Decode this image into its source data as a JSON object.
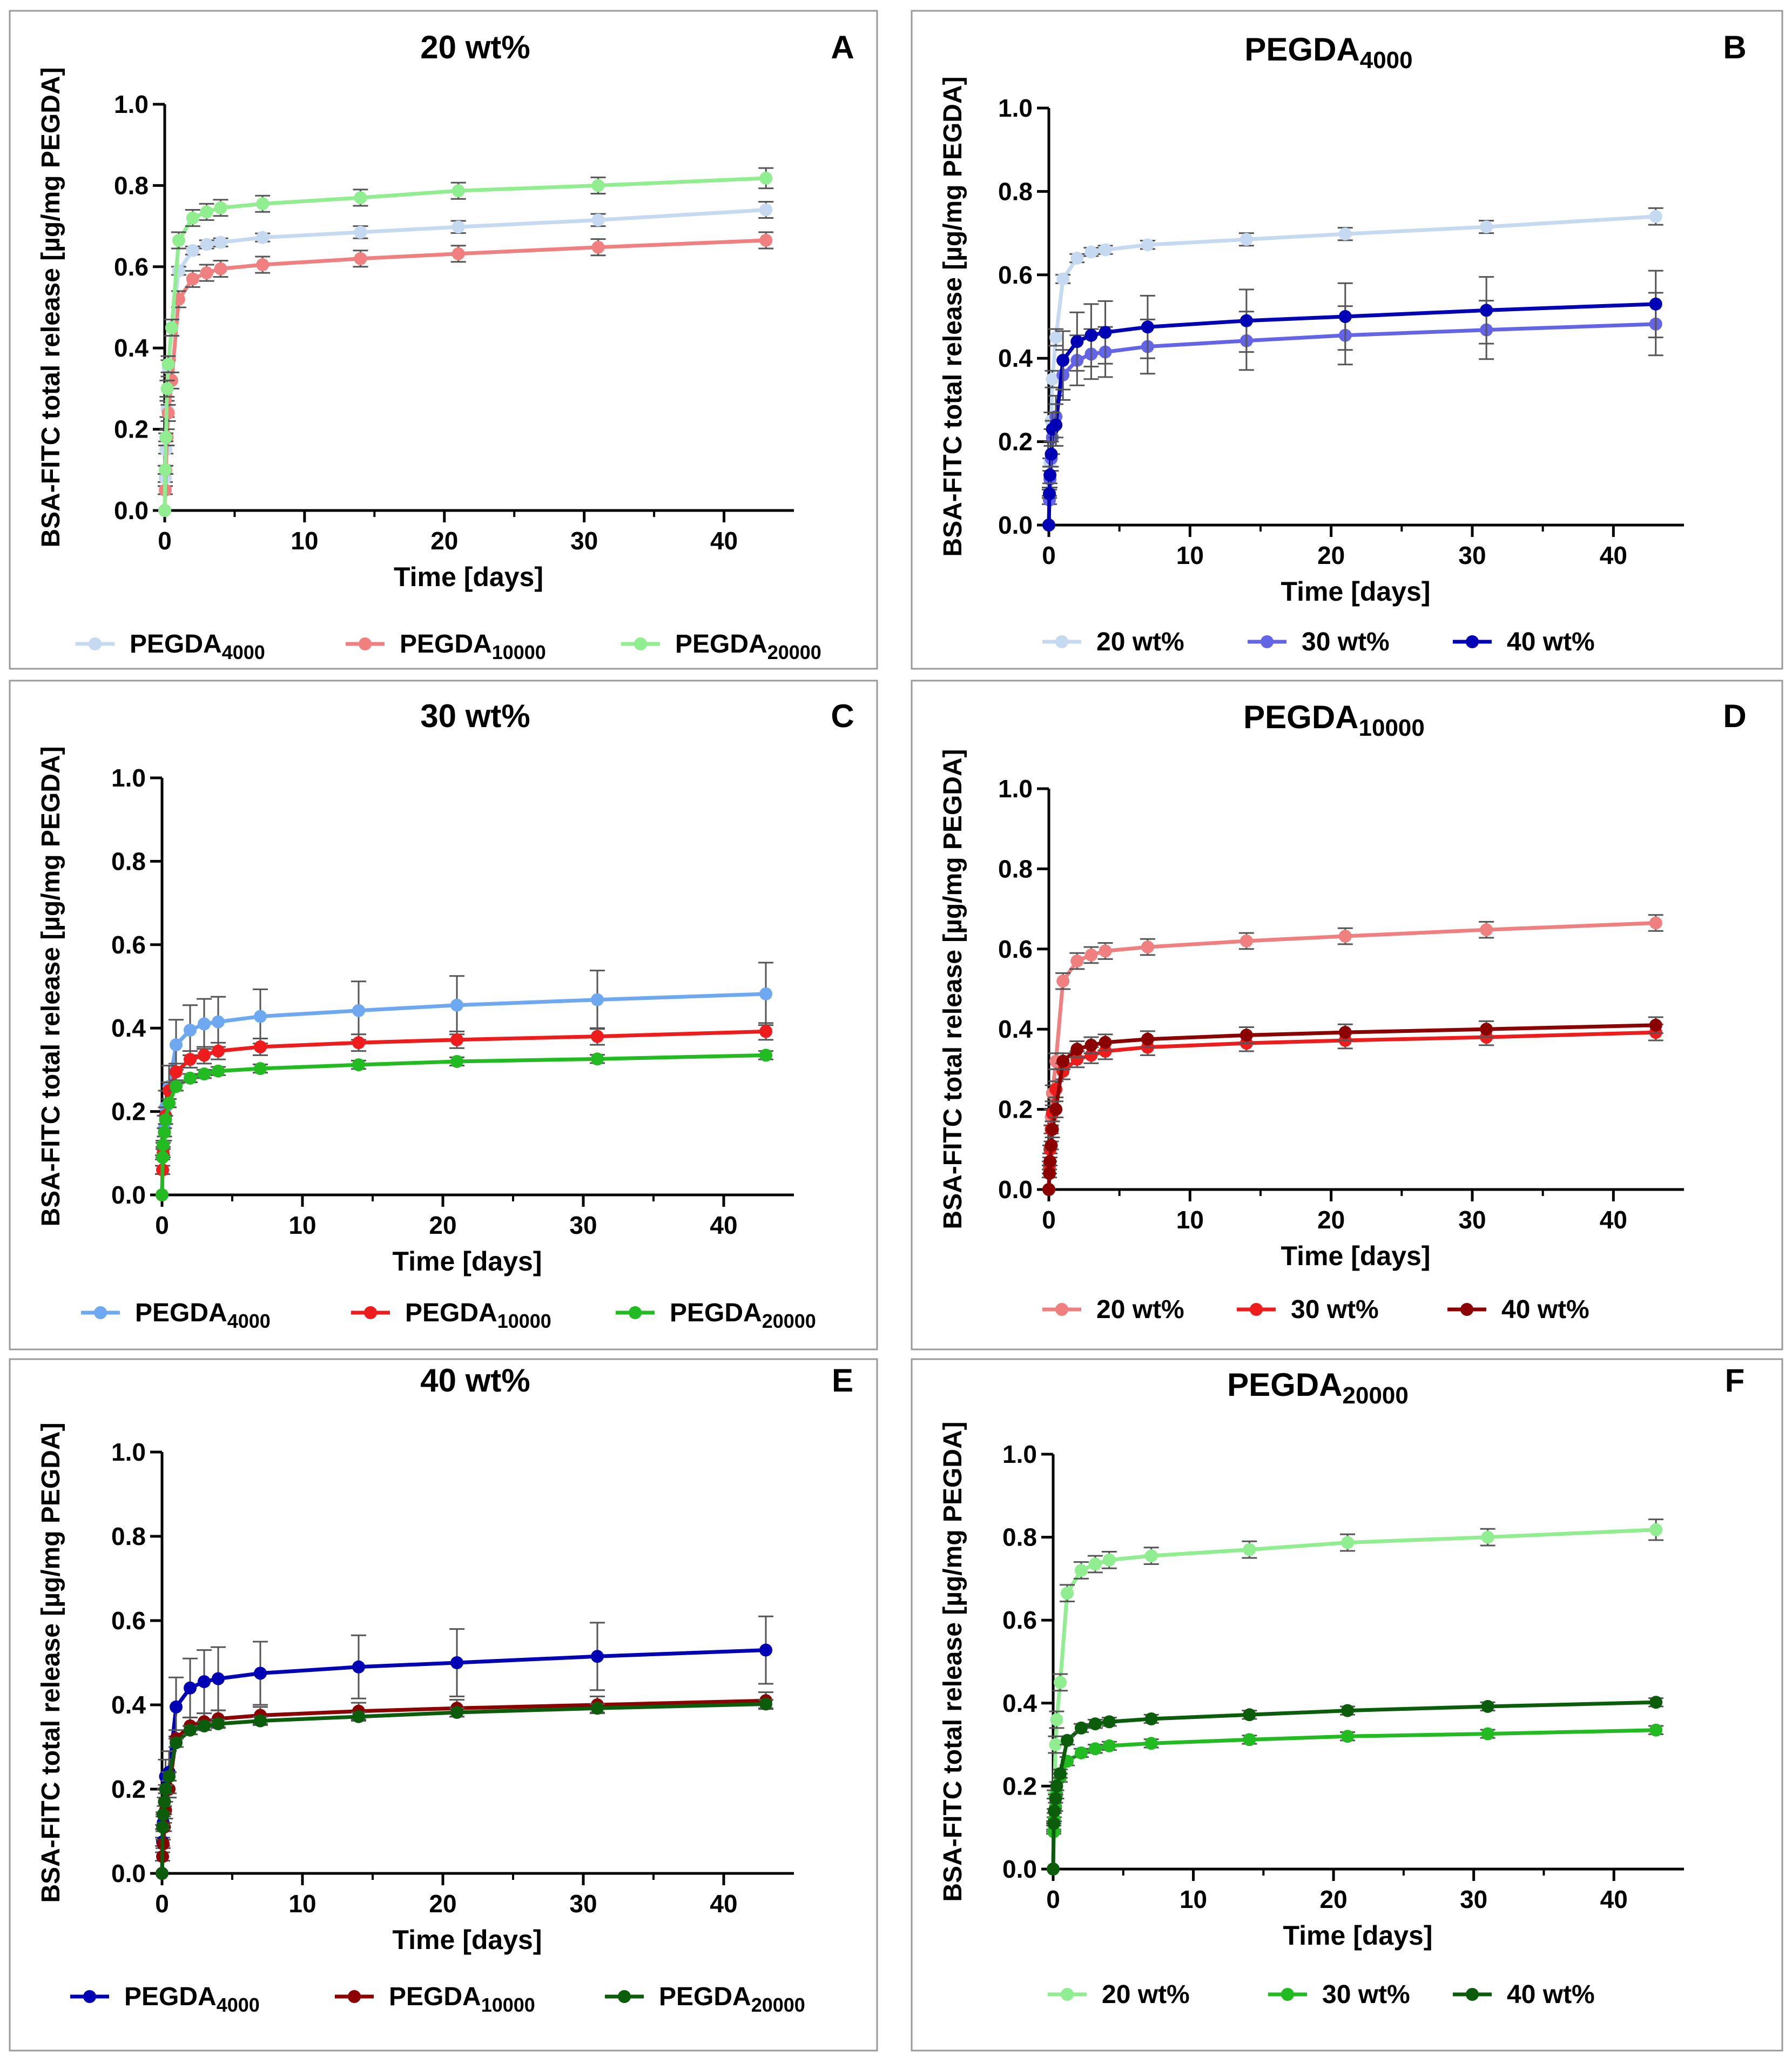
{
  "figure": {
    "shared": {
      "x_ticks": [
        "0",
        "10",
        "20",
        "30",
        "40"
      ],
      "y_ticks": [
        "0.0",
        "0.2",
        "0.4",
        "0.6",
        "0.8",
        "1.0"
      ],
      "xlabel": "Time [days]",
      "ylabel": "BSA-FITC total release [µg/mg PEGDA]",
      "times": [
        0,
        0.04,
        0.08,
        0.17,
        0.25,
        0.5,
        1,
        2,
        3,
        4,
        7,
        14,
        21,
        31,
        43
      ]
    }
  },
  "chart_data": [
    {
      "type": "line",
      "panel_letter": "A",
      "title": "20 wt%",
      "title_main": "20 wt%",
      "title_sub": "",
      "xlabel": "Time [days]",
      "ylabel": "BSA-FITC total release [µg/mg PEGDA]",
      "xlim": [
        0,
        45
      ],
      "ylim": [
        0,
        1
      ],
      "x": [
        0,
        0.04,
        0.08,
        0.17,
        0.25,
        0.5,
        1,
        2,
        3,
        4,
        7,
        14,
        21,
        31,
        43
      ],
      "legend_position": "bottom",
      "series": [
        {
          "name": "PEGDA",
          "name_sub": "4000",
          "color": "#c5d9f1",
          "values": [
            0,
            0.08,
            0.15,
            0.25,
            0.35,
            0.45,
            0.59,
            0.64,
            0.655,
            0.66,
            0.672,
            0.685,
            0.698,
            0.715,
            0.74
          ],
          "errors": [
            0,
            0.01,
            0.01,
            0.02,
            0.02,
            0.02,
            0.01,
            0.01,
            0.01,
            0.01,
            0.01,
            0.015,
            0.015,
            0.015,
            0.02
          ]
        },
        {
          "name": "PEGDA",
          "name_sub": "10000",
          "color": "#f08080",
          "values": [
            0,
            0.05,
            0.1,
            0.18,
            0.24,
            0.32,
            0.52,
            0.57,
            0.585,
            0.595,
            0.605,
            0.62,
            0.632,
            0.648,
            0.665
          ],
          "errors": [
            0,
            0.01,
            0.01,
            0.02,
            0.02,
            0.02,
            0.02,
            0.02,
            0.02,
            0.02,
            0.02,
            0.02,
            0.02,
            0.02,
            0.02
          ]
        },
        {
          "name": "PEGDA",
          "name_sub": "20000",
          "color": "#90ee90",
          "values": [
            0,
            0.1,
            0.18,
            0.3,
            0.36,
            0.45,
            0.665,
            0.72,
            0.735,
            0.745,
            0.755,
            0.77,
            0.787,
            0.8,
            0.818
          ],
          "errors": [
            0,
            0.01,
            0.01,
            0.02,
            0.02,
            0.02,
            0.02,
            0.02,
            0.02,
            0.02,
            0.02,
            0.02,
            0.02,
            0.02,
            0.025
          ]
        }
      ]
    },
    {
      "type": "line",
      "panel_letter": "B",
      "title": "PEGDA4000",
      "title_main": "PEGDA",
      "title_sub": "4000",
      "xlabel": "Time [days]",
      "ylabel": "BSA-FITC total release [µg/mg PEGDA]",
      "xlim": [
        0,
        45
      ],
      "ylim": [
        0,
        1
      ],
      "x": [
        0,
        0.04,
        0.08,
        0.17,
        0.25,
        0.5,
        1,
        2,
        3,
        4,
        7,
        14,
        21,
        31,
        43
      ],
      "legend_position": "bottom",
      "series": [
        {
          "name": "20 wt%",
          "name_sub": "",
          "color": "#c5d9f1",
          "values": [
            0,
            0.08,
            0.15,
            0.25,
            0.35,
            0.45,
            0.59,
            0.64,
            0.655,
            0.66,
            0.672,
            0.685,
            0.698,
            0.715,
            0.74
          ],
          "errors": [
            0,
            0.01,
            0.01,
            0.02,
            0.02,
            0.02,
            0.01,
            0.01,
            0.01,
            0.01,
            0.01,
            0.015,
            0.015,
            0.015,
            0.02
          ]
        },
        {
          "name": "30 wt%",
          "name_sub": "",
          "color": "#6464e6",
          "values": [
            0,
            0.06,
            0.11,
            0.16,
            0.21,
            0.26,
            0.36,
            0.395,
            0.41,
            0.415,
            0.428,
            0.442,
            0.455,
            0.468,
            0.482
          ],
          "errors": [
            0,
            0.01,
            0.02,
            0.03,
            0.04,
            0.05,
            0.06,
            0.06,
            0.06,
            0.06,
            0.065,
            0.07,
            0.07,
            0.07,
            0.075
          ]
        },
        {
          "name": "40 wt%",
          "name_sub": "",
          "color": "#0000b4",
          "values": [
            0,
            0.075,
            0.12,
            0.17,
            0.23,
            0.24,
            0.395,
            0.44,
            0.455,
            0.462,
            0.475,
            0.49,
            0.5,
            0.515,
            0.53
          ],
          "errors": [
            0,
            0.01,
            0.02,
            0.03,
            0.04,
            0.05,
            0.07,
            0.07,
            0.075,
            0.075,
            0.075,
            0.075,
            0.08,
            0.08,
            0.08
          ]
        }
      ]
    },
    {
      "type": "line",
      "panel_letter": "C",
      "title": "30 wt%",
      "title_main": "30 wt%",
      "title_sub": "",
      "xlabel": "Time [days]",
      "ylabel": "BSA-FITC total release [µg/mg PEGDA]",
      "xlim": [
        0,
        45
      ],
      "ylim": [
        0,
        1
      ],
      "x": [
        0,
        0.04,
        0.08,
        0.17,
        0.25,
        0.5,
        1,
        2,
        3,
        4,
        7,
        14,
        21,
        31,
        43
      ],
      "legend_position": "bottom",
      "series": [
        {
          "name": "PEGDA",
          "name_sub": "4000",
          "color": "#6ea8f0",
          "values": [
            0,
            0.06,
            0.11,
            0.16,
            0.21,
            0.26,
            0.36,
            0.395,
            0.41,
            0.415,
            0.428,
            0.442,
            0.455,
            0.468,
            0.482
          ],
          "errors": [
            0,
            0.01,
            0.02,
            0.03,
            0.04,
            0.05,
            0.06,
            0.06,
            0.06,
            0.06,
            0.065,
            0.07,
            0.07,
            0.07,
            0.075
          ]
        },
        {
          "name": "PEGDA",
          "name_sub": "10000",
          "color": "#ee1c1c",
          "values": [
            0,
            0.06,
            0.1,
            0.15,
            0.19,
            0.25,
            0.295,
            0.325,
            0.335,
            0.345,
            0.355,
            0.365,
            0.372,
            0.38,
            0.392
          ],
          "errors": [
            0,
            0.01,
            0.01,
            0.01,
            0.02,
            0.02,
            0.02,
            0.02,
            0.02,
            0.02,
            0.02,
            0.02,
            0.02,
            0.02,
            0.02
          ]
        },
        {
          "name": "PEGDA",
          "name_sub": "20000",
          "color": "#22bb22",
          "values": [
            0,
            0.09,
            0.12,
            0.15,
            0.18,
            0.22,
            0.26,
            0.28,
            0.29,
            0.297,
            0.303,
            0.312,
            0.32,
            0.326,
            0.335
          ],
          "errors": [
            0,
            0.005,
            0.005,
            0.01,
            0.01,
            0.01,
            0.01,
            0.01,
            0.01,
            0.01,
            0.01,
            0.01,
            0.01,
            0.01,
            0.01
          ]
        }
      ]
    },
    {
      "type": "line",
      "panel_letter": "D",
      "title": "PEGDA10000",
      "title_main": "PEGDA",
      "title_sub": "10000",
      "xlabel": "Time [days]",
      "ylabel": "BSA-FITC total release [µg/mg PEGDA]",
      "xlim": [
        0,
        45
      ],
      "ylim": [
        0,
        1
      ],
      "x": [
        0,
        0.04,
        0.08,
        0.17,
        0.25,
        0.5,
        1,
        2,
        3,
        4,
        7,
        14,
        21,
        31,
        43
      ],
      "legend_position": "bottom",
      "series": [
        {
          "name": "20 wt%",
          "name_sub": "",
          "color": "#f08080",
          "values": [
            0,
            0.05,
            0.1,
            0.18,
            0.24,
            0.32,
            0.52,
            0.57,
            0.585,
            0.595,
            0.605,
            0.62,
            0.632,
            0.648,
            0.665
          ],
          "errors": [
            0,
            0.01,
            0.01,
            0.02,
            0.02,
            0.02,
            0.02,
            0.02,
            0.02,
            0.02,
            0.02,
            0.02,
            0.02,
            0.02,
            0.02
          ]
        },
        {
          "name": "30 wt%",
          "name_sub": "",
          "color": "#ee1c1c",
          "values": [
            0,
            0.06,
            0.1,
            0.15,
            0.19,
            0.25,
            0.295,
            0.325,
            0.335,
            0.345,
            0.355,
            0.365,
            0.372,
            0.38,
            0.392
          ],
          "errors": [
            0,
            0.01,
            0.01,
            0.01,
            0.02,
            0.02,
            0.02,
            0.02,
            0.02,
            0.02,
            0.02,
            0.02,
            0.02,
            0.02,
            0.02
          ]
        },
        {
          "name": "40 wt%",
          "name_sub": "",
          "color": "#8b0000",
          "values": [
            0,
            0.04,
            0.07,
            0.11,
            0.15,
            0.2,
            0.32,
            0.35,
            0.36,
            0.367,
            0.375,
            0.385,
            0.392,
            0.4,
            0.41
          ],
          "errors": [
            0,
            0.01,
            0.01,
            0.01,
            0.02,
            0.02,
            0.02,
            0.02,
            0.02,
            0.02,
            0.02,
            0.02,
            0.02,
            0.02,
            0.02
          ]
        }
      ]
    },
    {
      "type": "line",
      "panel_letter": "E",
      "title": "40 wt%",
      "title_main": "40 wt%",
      "title_sub": "",
      "xlabel": "Time [days]",
      "ylabel": "BSA-FITC total release [µg/mg PEGDA]",
      "xlim": [
        0,
        45
      ],
      "ylim": [
        0,
        1
      ],
      "x": [
        0,
        0.04,
        0.08,
        0.17,
        0.25,
        0.5,
        1,
        2,
        3,
        4,
        7,
        14,
        21,
        31,
        43
      ],
      "legend_position": "bottom",
      "series": [
        {
          "name": "PEGDA",
          "name_sub": "4000",
          "color": "#0000b4",
          "values": [
            0,
            0.075,
            0.12,
            0.17,
            0.23,
            0.24,
            0.395,
            0.44,
            0.455,
            0.462,
            0.475,
            0.49,
            0.5,
            0.515,
            0.53
          ],
          "errors": [
            0,
            0.01,
            0.02,
            0.03,
            0.04,
            0.05,
            0.07,
            0.07,
            0.075,
            0.075,
            0.075,
            0.075,
            0.08,
            0.08,
            0.08
          ]
        },
        {
          "name": "PEGDA",
          "name_sub": "10000",
          "color": "#8b0000",
          "values": [
            0,
            0.04,
            0.07,
            0.11,
            0.15,
            0.2,
            0.32,
            0.35,
            0.36,
            0.367,
            0.375,
            0.385,
            0.392,
            0.4,
            0.41
          ],
          "errors": [
            0,
            0.01,
            0.01,
            0.01,
            0.02,
            0.02,
            0.02,
            0.02,
            0.02,
            0.02,
            0.02,
            0.02,
            0.02,
            0.02,
            0.02
          ]
        },
        {
          "name": "PEGDA",
          "name_sub": "20000",
          "color": "#0b5d0b",
          "values": [
            0,
            0.11,
            0.14,
            0.17,
            0.2,
            0.23,
            0.31,
            0.34,
            0.35,
            0.355,
            0.362,
            0.372,
            0.382,
            0.392,
            0.402
          ],
          "errors": [
            0,
            0.005,
            0.005,
            0.01,
            0.01,
            0.01,
            0.01,
            0.01,
            0.01,
            0.01,
            0.01,
            0.01,
            0.01,
            0.01,
            0.01
          ]
        }
      ]
    },
    {
      "type": "line",
      "panel_letter": "F",
      "title": "PEGDA20000",
      "title_main": "PEGDA",
      "title_sub": "20000",
      "xlabel": "Time [days]",
      "ylabel": "BSA-FITC total release [µg/mg PEGDA]",
      "xlim": [
        0,
        45
      ],
      "ylim": [
        0,
        1
      ],
      "x": [
        0,
        0.04,
        0.08,
        0.17,
        0.25,
        0.5,
        1,
        2,
        3,
        4,
        7,
        14,
        21,
        31,
        43
      ],
      "legend_position": "bottom",
      "series": [
        {
          "name": "20 wt%",
          "name_sub": "",
          "color": "#90ee90",
          "values": [
            0,
            0.1,
            0.18,
            0.3,
            0.36,
            0.45,
            0.665,
            0.72,
            0.735,
            0.745,
            0.755,
            0.77,
            0.787,
            0.8,
            0.818
          ],
          "errors": [
            0,
            0.01,
            0.01,
            0.02,
            0.02,
            0.02,
            0.02,
            0.02,
            0.02,
            0.02,
            0.02,
            0.02,
            0.02,
            0.02,
            0.025
          ]
        },
        {
          "name": "30 wt%",
          "name_sub": "",
          "color": "#22bb22",
          "values": [
            0,
            0.09,
            0.12,
            0.15,
            0.18,
            0.22,
            0.26,
            0.28,
            0.29,
            0.297,
            0.303,
            0.312,
            0.32,
            0.326,
            0.335
          ],
          "errors": [
            0,
            0.005,
            0.005,
            0.01,
            0.01,
            0.01,
            0.01,
            0.01,
            0.01,
            0.01,
            0.01,
            0.01,
            0.01,
            0.01,
            0.01
          ]
        },
        {
          "name": "40 wt%",
          "name_sub": "",
          "color": "#0b5d0b",
          "values": [
            0,
            0.11,
            0.14,
            0.17,
            0.2,
            0.23,
            0.31,
            0.34,
            0.35,
            0.355,
            0.362,
            0.372,
            0.382,
            0.392,
            0.402
          ],
          "errors": [
            0,
            0.005,
            0.005,
            0.01,
            0.01,
            0.01,
            0.01,
            0.01,
            0.01,
            0.01,
            0.01,
            0.01,
            0.01,
            0.01,
            0.01
          ]
        }
      ]
    }
  ]
}
